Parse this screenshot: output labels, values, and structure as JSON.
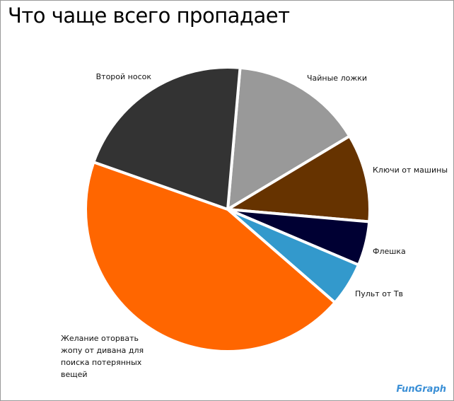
{
  "chart_data": {
    "type": "pie",
    "title": "Что чаще всего пропадает",
    "categories": [
      "Чайные ложки",
      "Ключи от машины",
      "Флешка",
      "Пульт от Тв",
      "Желание оторвать жопу от дивана для поиска потерянных вещей",
      "Второй носок"
    ],
    "values": [
      15,
      10,
      5,
      5,
      44,
      21
    ],
    "colors": [
      "#999999",
      "#663300",
      "#000033",
      "#3399cc",
      "#ff6600",
      "#333333"
    ],
    "watermark": "FunGraph"
  }
}
